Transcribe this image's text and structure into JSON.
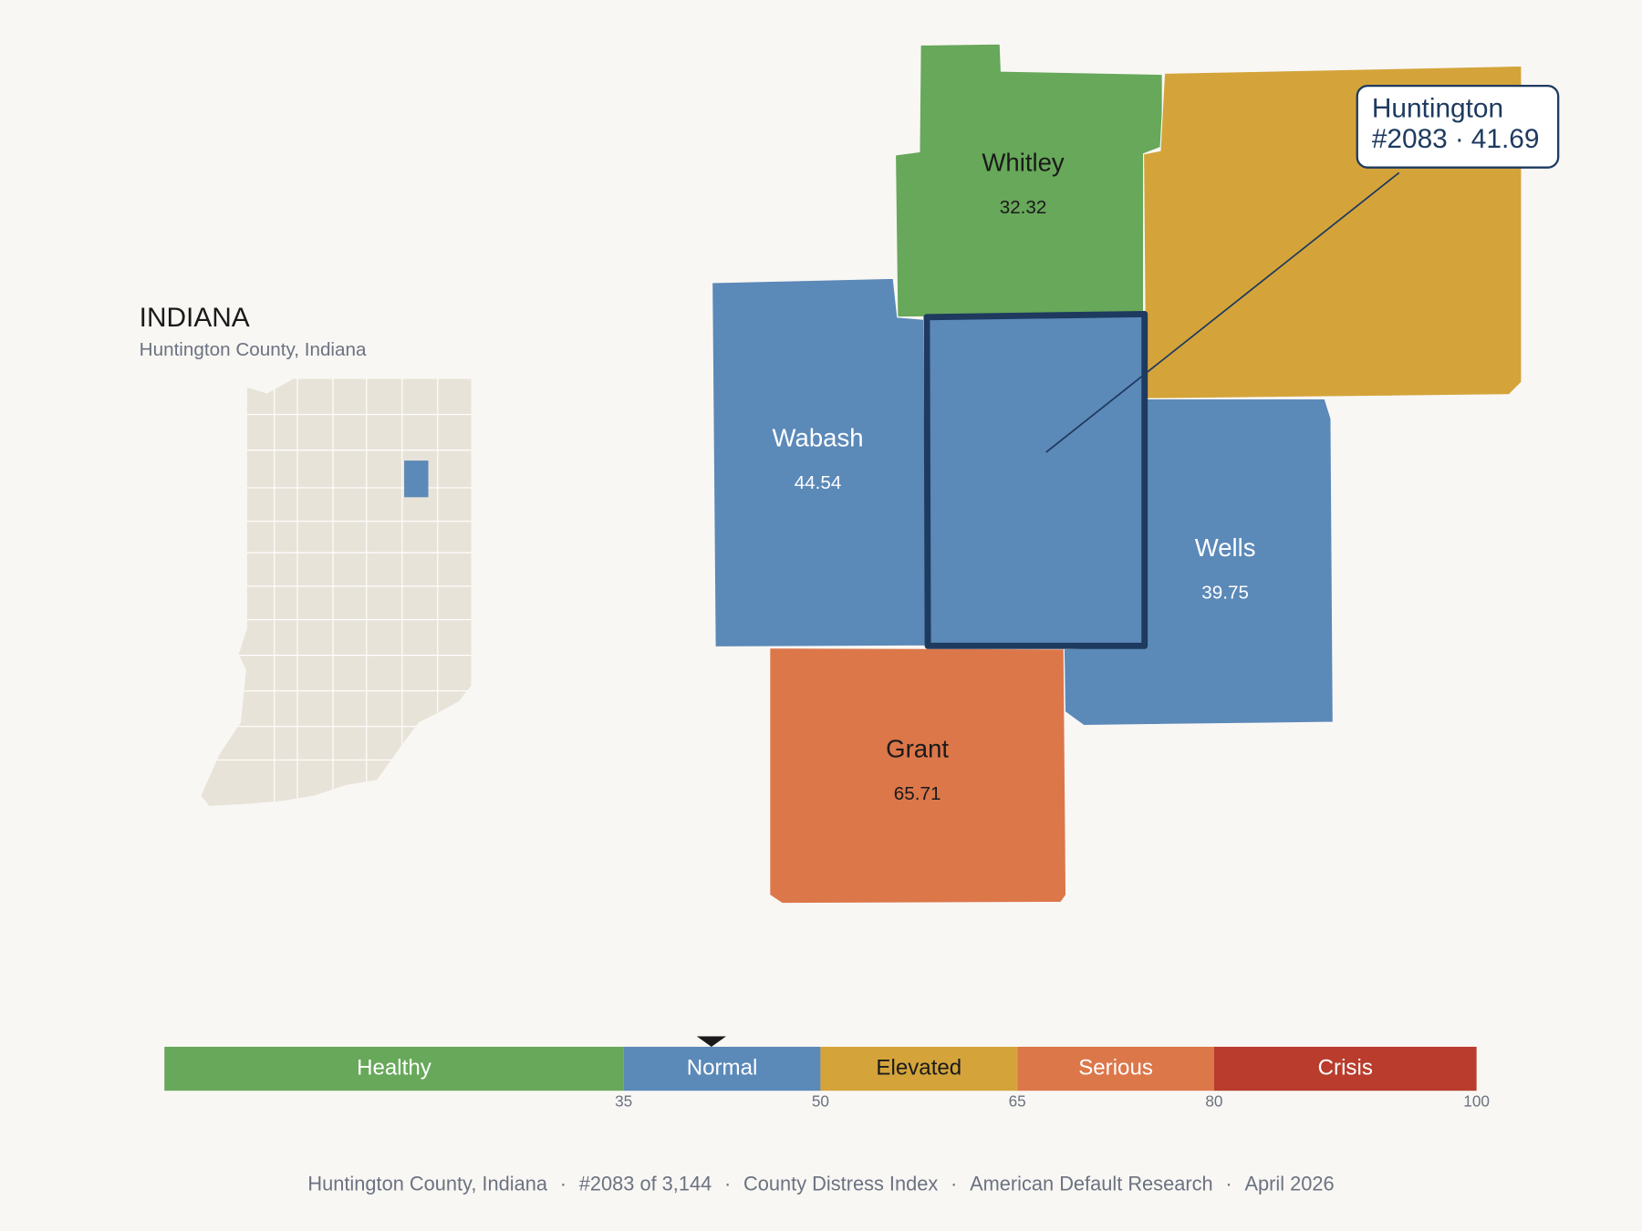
{
  "header": {
    "title": "INDIANA",
    "subtitle": "Huntington County, Indiana"
  },
  "separator": "·",
  "counties": [
    {
      "name": "Whitley",
      "value": 32.32,
      "color": "#67a85a"
    },
    {
      "name": null,
      "value": null,
      "color": "#d4a43a"
    },
    {
      "name": "Wabash",
      "value": 44.54,
      "color": "#5b89b8"
    },
    {
      "name": "Huntington",
      "value": 41.69,
      "rank": "#2083",
      "color": "#5b89b8"
    },
    {
      "name": "Wells",
      "value": 39.75,
      "color": "#5b89b8"
    },
    {
      "name": "Grant",
      "value": 65.71,
      "color": "#dc774a"
    }
  ],
  "scale": {
    "min": 0,
    "bands": [
      {
        "label": "Healthy",
        "max": 35,
        "color": "#67a85a"
      },
      {
        "label": "Normal",
        "max": 50,
        "color": "#5b89b8"
      },
      {
        "label": "Elevated",
        "max": 65,
        "color": "#d4a43a"
      },
      {
        "label": "Serious",
        "max": 80,
        "color": "#dc774a"
      },
      {
        "label": "Crisis",
        "max": 100,
        "color": "#b93c2c"
      }
    ]
  },
  "footer": [
    "Huntington County, Indiana",
    "#2083 of 3,144",
    "County Distress Index",
    "American Default Research",
    "April 2026"
  ]
}
